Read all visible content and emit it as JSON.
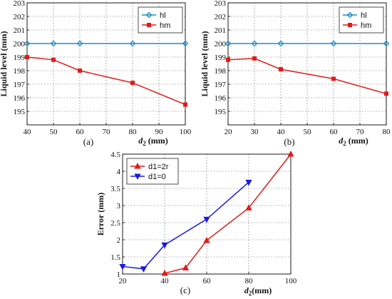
{
  "chart_data": [
    {
      "type": "line",
      "caption": "(a)",
      "xlabel": "d",
      "xlabel_sub": "2",
      "xlabel_unit": " (mm)",
      "ylabel": "Liquid level (mm)",
      "xlim": [
        40,
        100
      ],
      "ylim": [
        194,
        203
      ],
      "xticks": [
        40,
        50,
        60,
        70,
        80,
        90,
        100
      ],
      "yticks": [
        195,
        196,
        197,
        198,
        199,
        200,
        201,
        202,
        203
      ],
      "grid": true,
      "legend_position": "top-right",
      "series": [
        {
          "name": "hl",
          "color": "#1f8fc8",
          "marker": "diamond",
          "x": [
            40,
            50,
            60,
            80,
            100
          ],
          "y": [
            200,
            200,
            200,
            200,
            200
          ]
        },
        {
          "name": "hm",
          "color": "#e11b1b",
          "marker": "square",
          "x": [
            40,
            50,
            60,
            80,
            100
          ],
          "y": [
            199.0,
            198.8,
            198.0,
            197.1,
            195.5
          ]
        }
      ]
    },
    {
      "type": "line",
      "caption": "(b)",
      "xlabel": "d",
      "xlabel_sub": "2",
      "xlabel_unit": " (mm)",
      "ylabel": "Liquid level (mm)",
      "xlim": [
        20,
        80
      ],
      "ylim": [
        194,
        203
      ],
      "xticks": [
        20,
        30,
        40,
        50,
        60,
        70,
        80
      ],
      "yticks": [
        195,
        196,
        197,
        198,
        199,
        200,
        201,
        202,
        203
      ],
      "grid": true,
      "legend_position": "top-right",
      "series": [
        {
          "name": "hl",
          "color": "#1f8fc8",
          "marker": "diamond",
          "x": [
            20,
            30,
            40,
            60,
            80
          ],
          "y": [
            200,
            200,
            200,
            200,
            200
          ]
        },
        {
          "name": "hm",
          "color": "#e11b1b",
          "marker": "square",
          "x": [
            20,
            30,
            40,
            60,
            80
          ],
          "y": [
            198.8,
            198.9,
            198.1,
            197.4,
            196.3
          ]
        }
      ]
    },
    {
      "type": "line",
      "caption": "(c)",
      "xlabel": "d",
      "xlabel_sub": "2",
      "xlabel_unit": "(mm)",
      "ylabel": "Error (mm)",
      "xlim": [
        20,
        100
      ],
      "ylim": [
        1,
        4.5
      ],
      "xticks": [
        20,
        40,
        60,
        80,
        100
      ],
      "yticks": [
        1,
        1.5,
        2,
        2.5,
        3,
        3.5,
        4,
        4.5
      ],
      "grid": true,
      "legend_position": "top-left",
      "series": [
        {
          "name": "d1=2r",
          "color": "#e11b1b",
          "marker": "triangle-up",
          "x": [
            40,
            50,
            60,
            80,
            100
          ],
          "y": [
            1.02,
            1.18,
            1.98,
            2.93,
            4.5
          ]
        },
        {
          "name": "d1=0",
          "color": "#1a1ae0",
          "marker": "triangle-down",
          "x": [
            20,
            30,
            40,
            60,
            80
          ],
          "y": [
            1.22,
            1.15,
            1.85,
            2.6,
            3.68
          ]
        }
      ]
    }
  ]
}
